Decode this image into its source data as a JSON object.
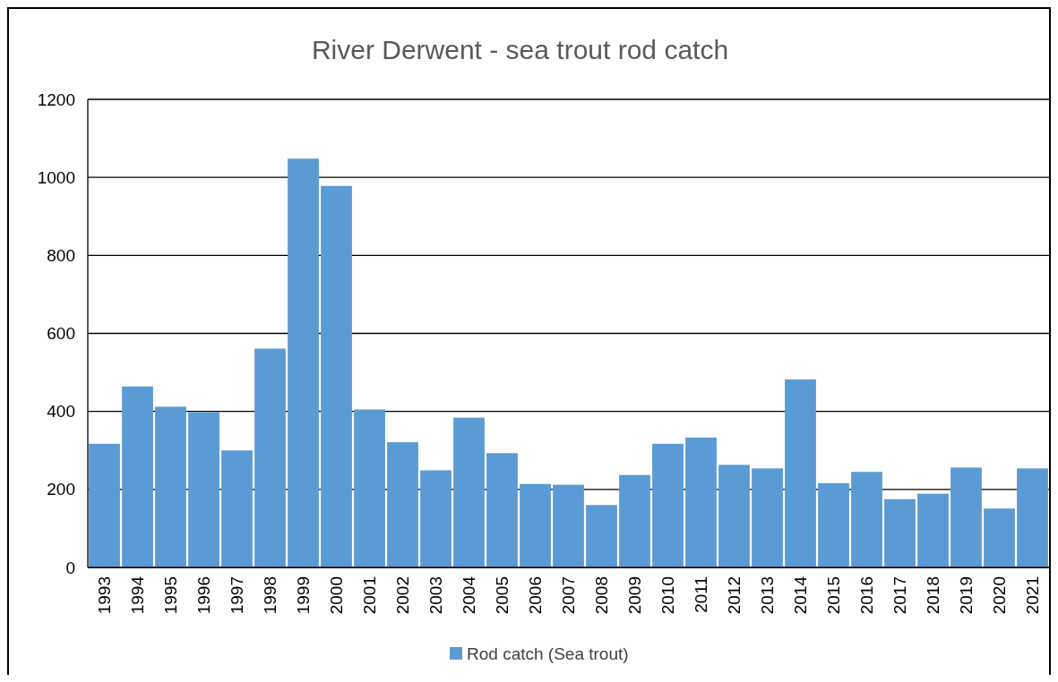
{
  "chart_data": {
    "type": "bar",
    "title": "River Derwent  - sea trout rod catch",
    "categories": [
      "1993",
      "1994",
      "1995",
      "1996",
      "1997",
      "1998",
      "1999",
      "2000",
      "2001",
      "2002",
      "2003",
      "2004",
      "2005",
      "2006",
      "2007",
      "2008",
      "2009",
      "2010",
      "2011",
      "2012",
      "2013",
      "2014",
      "2015",
      "2016",
      "2017",
      "2018",
      "2019",
      "2020",
      "2021"
    ],
    "series": [
      {
        "name": "Rod catch (Sea trout)",
        "color": "#5b9bd5",
        "values": [
          317,
          464,
          412,
          398,
          300,
          561,
          1048,
          978,
          405,
          321,
          249,
          384,
          293,
          214,
          212,
          160,
          237,
          317,
          333,
          263,
          254,
          482,
          216,
          245,
          175,
          189,
          256,
          151,
          254
        ]
      }
    ],
    "ylim": [
      0,
      1200
    ],
    "yticks": [
      0,
      200,
      400,
      600,
      800,
      1000,
      1200
    ],
    "grid": "y",
    "legend": "bottom"
  }
}
